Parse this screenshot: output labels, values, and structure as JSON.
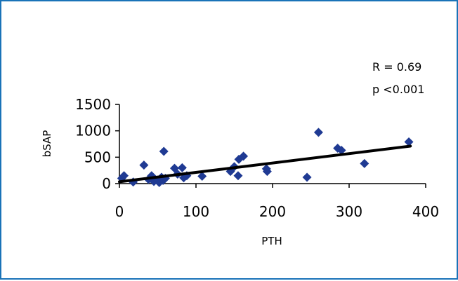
{
  "chart_data": {
    "type": "scatter",
    "title": "",
    "xlabel": "PTH",
    "ylabel": "bSAP",
    "xlim": [
      0,
      400
    ],
    "ylim": [
      0,
      1500
    ],
    "xticks": [
      "0",
      "100",
      "200",
      "300",
      "400"
    ],
    "yticks": [
      "0",
      "500",
      "1000",
      "1500"
    ],
    "grid": false,
    "legend": "none",
    "marker_color": "#1f3a93",
    "trendline_color": "#000000",
    "annotations": [
      "R = 0.69",
      "p <0.001"
    ],
    "trendline": {
      "x": [
        0,
        380
      ],
      "y": [
        35,
        710
      ]
    },
    "points": [
      {
        "x": 3,
        "y": 100
      },
      {
        "x": 6,
        "y": 150
      },
      {
        "x": 18,
        "y": 30
      },
      {
        "x": 32,
        "y": 350
      },
      {
        "x": 38,
        "y": 80
      },
      {
        "x": 42,
        "y": 150
      },
      {
        "x": 45,
        "y": 40
      },
      {
        "x": 50,
        "y": 60
      },
      {
        "x": 52,
        "y": 20
      },
      {
        "x": 55,
        "y": 120
      },
      {
        "x": 57,
        "y": 60
      },
      {
        "x": 58,
        "y": 610
      },
      {
        "x": 60,
        "y": 100
      },
      {
        "x": 72,
        "y": 290
      },
      {
        "x": 76,
        "y": 180
      },
      {
        "x": 82,
        "y": 300
      },
      {
        "x": 84,
        "y": 110
      },
      {
        "x": 88,
        "y": 150
      },
      {
        "x": 108,
        "y": 140
      },
      {
        "x": 145,
        "y": 230
      },
      {
        "x": 150,
        "y": 320
      },
      {
        "x": 155,
        "y": 150
      },
      {
        "x": 156,
        "y": 460
      },
      {
        "x": 162,
        "y": 520
      },
      {
        "x": 192,
        "y": 280
      },
      {
        "x": 193,
        "y": 230
      },
      {
        "x": 245,
        "y": 120
      },
      {
        "x": 260,
        "y": 970
      },
      {
        "x": 285,
        "y": 670
      },
      {
        "x": 290,
        "y": 630
      },
      {
        "x": 320,
        "y": 380
      },
      {
        "x": 378,
        "y": 790
      }
    ]
  }
}
